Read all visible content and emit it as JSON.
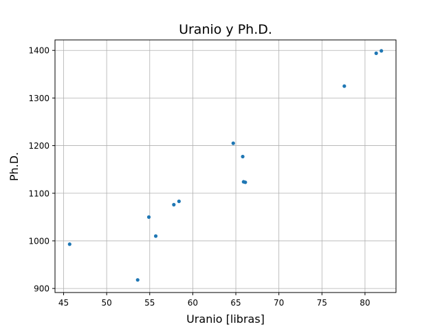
{
  "chart_data": {
    "type": "scatter",
    "title": "Uranio y Ph.D.",
    "xlabel": "Uranio [libras]",
    "ylabel": "Ph.D.",
    "xlim": [
      44.0,
      83.6
    ],
    "ylim": [
      891.5,
      1422.0
    ],
    "xticks": [
      45,
      50,
      55,
      60,
      65,
      70,
      75,
      80
    ],
    "yticks": [
      900,
      1000,
      1100,
      1200,
      1300,
      1400
    ],
    "grid": true,
    "marker_color": "#1f77b4",
    "points": [
      {
        "x": 45.7,
        "y": 993
      },
      {
        "x": 53.6,
        "y": 918
      },
      {
        "x": 54.9,
        "y": 1050
      },
      {
        "x": 55.7,
        "y": 1010
      },
      {
        "x": 57.8,
        "y": 1076
      },
      {
        "x": 58.4,
        "y": 1083
      },
      {
        "x": 64.7,
        "y": 1205
      },
      {
        "x": 65.8,
        "y": 1177
      },
      {
        "x": 65.9,
        "y": 1124
      },
      {
        "x": 66.1,
        "y": 1123
      },
      {
        "x": 77.6,
        "y": 1325
      },
      {
        "x": 81.3,
        "y": 1394
      },
      {
        "x": 81.9,
        "y": 1399
      }
    ]
  }
}
